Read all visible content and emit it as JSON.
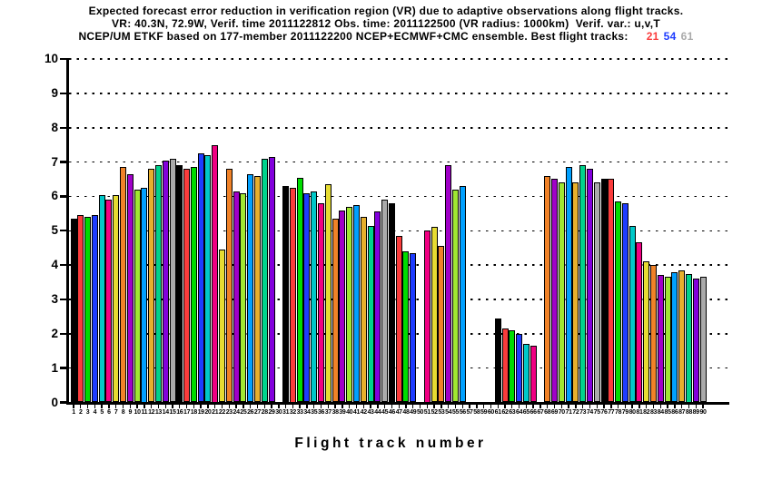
{
  "title": {
    "line1": "Expected forecast error reduction in verification region (VR) due to adaptive observations along flight tracks.",
    "line2": "VR: 40.3N, 72.9W, Verif. time 2011122812 Obs. time: 2011122500 (VR radius: 1000km)  Verif. var.: u,v,T",
    "line3_prefix": "NCEP/UM ETKF based on 177-member 2011122200 NCEP+ECMWF+CMC ensemble. Best flight tracks:",
    "best_tracks": [
      {
        "label": "21",
        "color": "#fa3c3c"
      },
      {
        "label": "54",
        "color": "#1e3cff"
      },
      {
        "label": "61",
        "color": "#aaaaaa"
      }
    ]
  },
  "chart_data": {
    "type": "bar",
    "title": "Expected forecast error reduction in verification region (VR) due to adaptive observations along flight tracks.",
    "xlabel": "Flight track number",
    "ylabel": "",
    "ylim": [
      0,
      10
    ],
    "yticks": [
      0,
      1,
      2,
      3,
      4,
      5,
      6,
      7,
      8,
      9,
      10
    ],
    "grid": "horizontal dotted lines at each integer 1-10",
    "legend": "none",
    "categories": [
      1,
      2,
      3,
      4,
      5,
      6,
      7,
      8,
      9,
      10,
      11,
      12,
      13,
      14,
      15,
      16,
      17,
      18,
      19,
      20,
      21,
      22,
      23,
      24,
      25,
      26,
      27,
      28,
      29,
      30,
      31,
      32,
      33,
      34,
      35,
      36,
      37,
      38,
      39,
      40,
      41,
      42,
      43,
      44,
      45,
      46,
      47,
      48,
      49,
      50,
      51,
      52,
      53,
      54,
      55,
      56,
      57,
      58,
      59,
      60,
      61,
      62,
      63,
      64,
      65,
      66,
      67,
      68,
      69,
      70,
      71,
      72,
      73,
      74,
      75,
      76,
      77,
      78,
      79,
      80,
      81,
      82,
      83,
      84,
      85,
      86,
      87,
      88,
      89,
      90
    ],
    "values": [
      5.35,
      5.45,
      5.4,
      5.45,
      6.05,
      5.9,
      6.05,
      6.85,
      6.65,
      6.2,
      6.25,
      6.8,
      6.9,
      7.05,
      7.1,
      6.9,
      6.8,
      6.85,
      7.25,
      7.2,
      7.5,
      4.45,
      6.8,
      6.15,
      6.1,
      6.65,
      6.6,
      7.1,
      7.15,
      0,
      6.3,
      6.25,
      6.55,
      6.1,
      6.15,
      5.8,
      6.35,
      5.35,
      5.6,
      5.7,
      5.75,
      5.4,
      5.15,
      5.55,
      5.9,
      5.8,
      4.85,
      4.4,
      4.35,
      0,
      5.0,
      5.1,
      4.55,
      6.9,
      6.2,
      6.3,
      0,
      0,
      0,
      0,
      2.45,
      2.15,
      2.1,
      2.0,
      1.7,
      1.65,
      0,
      6.6,
      6.5,
      6.4,
      6.85,
      6.4,
      6.9,
      6.8,
      6.4,
      6.5,
      6.5,
      5.85,
      5.8,
      5.15,
      4.65,
      4.1,
      4.0,
      3.7,
      3.65,
      3.8,
      3.85,
      3.75,
      3.6,
      3.65
    ],
    "bar_color_palette_cycle": [
      "#000000",
      "#fa3c3c",
      "#00dc00",
      "#1e3cff",
      "#00c8c8",
      "#f00082",
      "#e6dc32",
      "#f08228",
      "#a000c8",
      "#a0e632",
      "#00a0ff",
      "#e6af2d",
      "#00d28c",
      "#8200dc",
      "#aaaaaa"
    ],
    "color_rule": "bar for track n uses palette[(n-1) mod 15]",
    "missing_tracks": [
      30,
      50,
      57,
      58,
      59,
      60,
      67
    ]
  }
}
